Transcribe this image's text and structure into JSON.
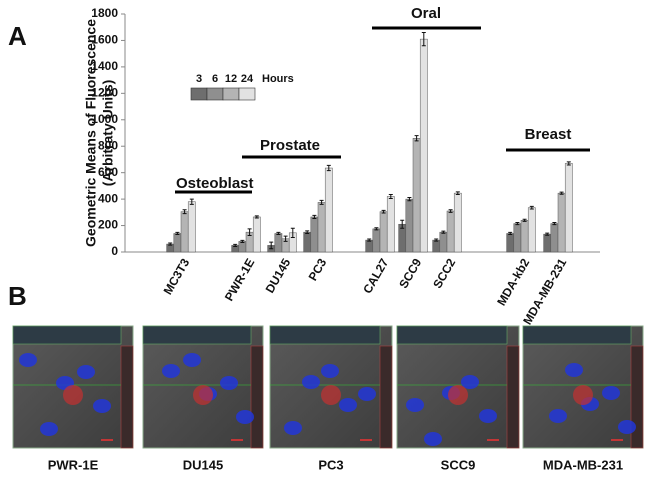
{
  "chart_data": {
    "type": "bar",
    "panel_labels": [
      "A",
      "B"
    ],
    "y_label": [
      "Geometric Means of Fluorescence",
      "(Arbitraty Units)"
    ],
    "categories": [
      "MC3T3",
      "PWR-1E",
      "DU145",
      "PC3",
      "CAL27",
      "SCC9",
      "SCC2",
      "MDA-kb2",
      "MDA-MB-231"
    ],
    "annotations": [
      "Osteoblast",
      "Prostate",
      "Oral",
      "Breast"
    ],
    "legend_title": "Hours",
    "series": [
      {
        "name": "3",
        "color": "#6e6e6e",
        "values": [
          60,
          50,
          50,
          150,
          90,
          210,
          90,
          140,
          135
        ],
        "errors": [
          8,
          8,
          25,
          10,
          8,
          30,
          8,
          8,
          8
        ]
      },
      {
        "name": "6",
        "color": "#8f8f8f",
        "values": [
          140,
          80,
          140,
          265,
          175,
          400,
          150,
          215,
          215
        ],
        "errors": [
          8,
          8,
          8,
          12,
          8,
          12,
          8,
          8,
          8
        ]
      },
      {
        "name": "12",
        "color": "#b4b4b4",
        "values": [
          305,
          150,
          100,
          375,
          305,
          860,
          310,
          240,
          445
        ],
        "errors": [
          15,
          25,
          20,
          15,
          10,
          20,
          10,
          8,
          8
        ]
      },
      {
        "name": "24",
        "color": "#e2e2e2",
        "values": [
          380,
          265,
          145,
          635,
          420,
          1610,
          445,
          335,
          670
        ],
        "errors": [
          20,
          8,
          35,
          20,
          15,
          50,
          10,
          10,
          12
        ]
      }
    ],
    "ylim": [
      0,
      1800
    ],
    "yticks": [
      0,
      200,
      400,
      600,
      800,
      1000,
      1200,
      1400,
      1600,
      1800
    ],
    "image_labels": [
      "PWR-1E",
      "DU145",
      "PC3",
      "SCC9",
      "MDA-MB-231"
    ]
  }
}
